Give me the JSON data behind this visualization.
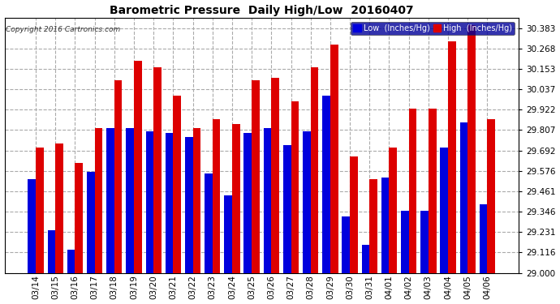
{
  "title": "Barometric Pressure  Daily High/Low  20160407",
  "copyright": "Copyright 2016 Cartronics.com",
  "legend_low": "Low  (Inches/Hg)",
  "legend_high": "High  (Inches/Hg)",
  "low_color": "#0000dd",
  "high_color": "#dd0000",
  "bg_color": "#ffffff",
  "ymin": 29.0,
  "ymax": 30.44,
  "yticks": [
    29.0,
    29.116,
    29.231,
    29.346,
    29.461,
    29.576,
    29.692,
    29.807,
    29.922,
    30.037,
    30.153,
    30.268,
    30.383
  ],
  "dates": [
    "03/14",
    "03/15",
    "03/16",
    "03/17",
    "03/18",
    "03/19",
    "03/20",
    "03/21",
    "03/22",
    "03/23",
    "03/24",
    "03/25",
    "03/26",
    "03/27",
    "03/28",
    "03/29",
    "03/30",
    "03/31",
    "04/01",
    "04/02",
    "04/03",
    "04/04",
    "04/05",
    "04/06"
  ],
  "high_values": [
    29.71,
    29.73,
    29.62,
    29.82,
    30.09,
    30.2,
    30.16,
    30.0,
    29.82,
    29.87,
    29.84,
    30.09,
    30.1,
    29.97,
    30.16,
    30.29,
    29.66,
    29.53,
    29.71,
    29.93,
    29.93,
    30.31,
    30.4,
    29.87
  ],
  "low_values": [
    29.53,
    29.24,
    29.13,
    29.57,
    29.82,
    29.82,
    29.8,
    29.79,
    29.77,
    29.56,
    29.44,
    29.79,
    29.82,
    29.72,
    29.8,
    30.0,
    29.32,
    29.16,
    29.54,
    29.35,
    29.35,
    29.71,
    29.85,
    29.39
  ]
}
